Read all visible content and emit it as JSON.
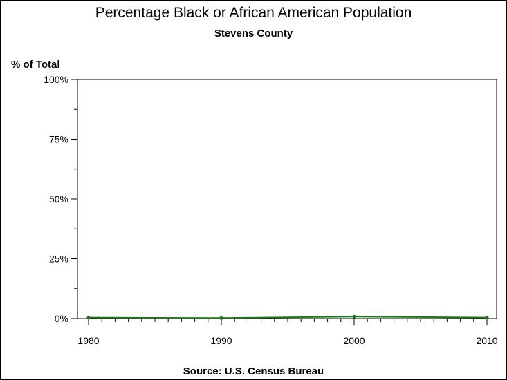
{
  "chart_data": {
    "type": "line",
    "title": "Percentage Black or African American Population",
    "subtitle": "Stevens County",
    "ylabel": "% of Total",
    "xlabel": "",
    "source": "Source: U.S. Census Bureau",
    "x": [
      1980,
      1990,
      2000,
      2010
    ],
    "series": [
      {
        "values": [
          0.4,
          0.2,
          0.8,
          0.4
        ],
        "color": "#1a7a1a"
      }
    ],
    "xlim": [
      1980,
      2010
    ],
    "ylim": [
      0,
      100
    ],
    "xticks": [
      "1980",
      "1990",
      "2000",
      "2010"
    ],
    "yticks": [
      "0%",
      "25%",
      "50%",
      "75%",
      "100%"
    ],
    "ytick_values": [
      0,
      25,
      50,
      75,
      100
    ],
    "grid": false,
    "legend": "none"
  }
}
